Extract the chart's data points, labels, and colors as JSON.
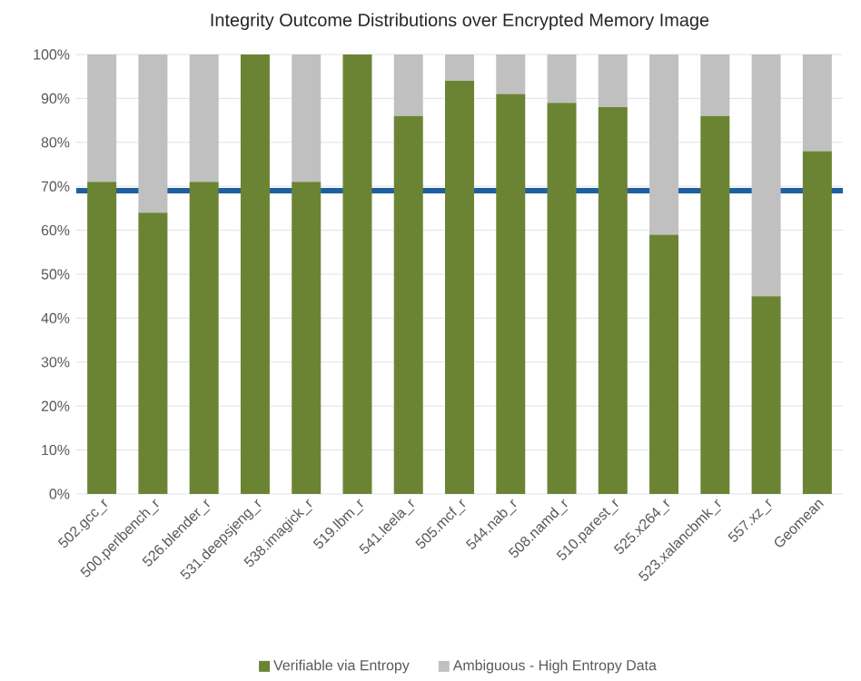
{
  "chart_data": {
    "type": "bar",
    "stacked": true,
    "title": "Integrity Outcome Distributions over Encrypted Memory Image",
    "categories": [
      "502.gcc_r",
      "500.perlbench_r",
      "526.blender_r",
      "531.deepsjeng_r",
      "538.imagick_r",
      "519.lbm_r",
      "541.leela_r",
      "505.mcf_r",
      "544.nab_r",
      "508.namd_r",
      "510.parest_r",
      "525.x264_r",
      "523.xalancbmk_r",
      "557.xz_r",
      "Geomean"
    ],
    "series": [
      {
        "name": "Verifiable via Entropy",
        "color": "#6b8434",
        "values": [
          71,
          64,
          71,
          100,
          71,
          100,
          86,
          94,
          91,
          89,
          88,
          59,
          86,
          45,
          78
        ]
      },
      {
        "name": "Ambiguous - High Entropy Data",
        "color": "#c0c0c0",
        "values": [
          29,
          36,
          29,
          0,
          29,
          0,
          14,
          6,
          9,
          11,
          12,
          41,
          14,
          55,
          22
        ]
      }
    ],
    "ylim": [
      0,
      100
    ],
    "yticks": [
      {
        "value": 0,
        "label": "0%"
      },
      {
        "value": 10,
        "label": "10%"
      },
      {
        "value": 20,
        "label": "20%"
      },
      {
        "value": 30,
        "label": "30%"
      },
      {
        "value": 40,
        "label": "40%"
      },
      {
        "value": 50,
        "label": "50%"
      },
      {
        "value": 60,
        "label": "60%"
      },
      {
        "value": 70,
        "label": "70%"
      },
      {
        "value": 80,
        "label": "80%"
      },
      {
        "value": 90,
        "label": "90%"
      },
      {
        "value": 100,
        "label": "100%"
      }
    ],
    "ref_lines": [
      {
        "axis": "y",
        "value": 69,
        "color": "#1f5f9f"
      }
    ],
    "grid": "y",
    "legend": "bottom"
  }
}
